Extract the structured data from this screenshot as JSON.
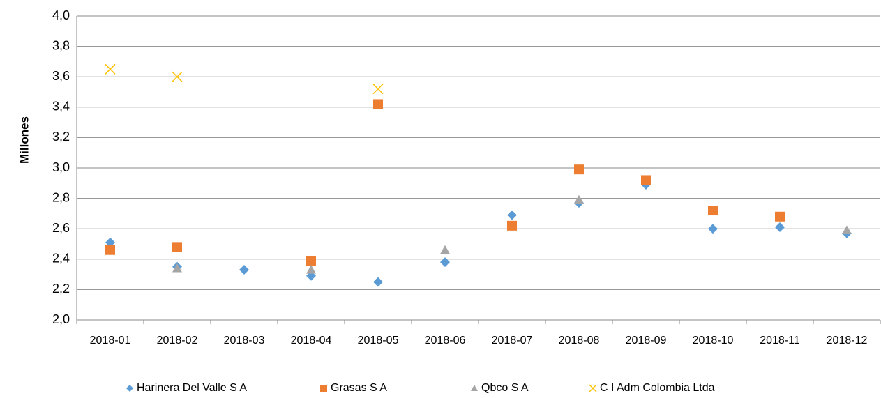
{
  "chart_data": {
    "type": "scatter",
    "y_label": "Millones",
    "categories": [
      "2018-01",
      "2018-02",
      "2018-03",
      "2018-04",
      "2018-05",
      "2018-06",
      "2018-07",
      "2018-08",
      "2018-09",
      "2018-10",
      "2018-11",
      "2018-12"
    ],
    "series": [
      {
        "name": "Harinera Del Valle S A",
        "color": "#5b9bd5",
        "marker": "diamond",
        "values": [
          2.51,
          2.35,
          2.33,
          2.29,
          2.25,
          2.38,
          2.69,
          2.77,
          2.89,
          2.6,
          2.61,
          2.57
        ]
      },
      {
        "name": "Grasas S A",
        "color": "#ed7d31",
        "marker": "square",
        "values": [
          2.46,
          2.48,
          null,
          2.39,
          3.42,
          null,
          2.62,
          2.99,
          2.92,
          2.72,
          2.68,
          null
        ]
      },
      {
        "name": "Qbco S A",
        "color": "#a5a5a5",
        "marker": "triangle",
        "values": [
          null,
          2.34,
          null,
          2.33,
          null,
          2.46,
          null,
          2.79,
          null,
          null,
          null,
          2.59
        ]
      },
      {
        "name": "C I Adm Colombia Ltda",
        "color": "#ffc000",
        "marker": "x",
        "values": [
          3.65,
          3.6,
          null,
          null,
          3.52,
          null,
          null,
          null,
          null,
          null,
          null,
          null
        ]
      }
    ],
    "ylim": [
      2.0,
      4.0
    ],
    "yticks": [
      {
        "value": 2.0,
        "label": "2,0"
      },
      {
        "value": 2.2,
        "label": "2,2"
      },
      {
        "value": 2.4,
        "label": "2,4"
      },
      {
        "value": 2.6,
        "label": "2,6"
      },
      {
        "value": 2.8,
        "label": "2,8"
      },
      {
        "value": 3.0,
        "label": "3,0"
      },
      {
        "value": 3.2,
        "label": "3,2"
      },
      {
        "value": 3.4,
        "label": "3,4"
      },
      {
        "value": 3.6,
        "label": "3,6"
      },
      {
        "value": 3.8,
        "label": "3,8"
      },
      {
        "value": 4.0,
        "label": "4,0"
      }
    ],
    "grid": true,
    "legend": "bottom"
  }
}
